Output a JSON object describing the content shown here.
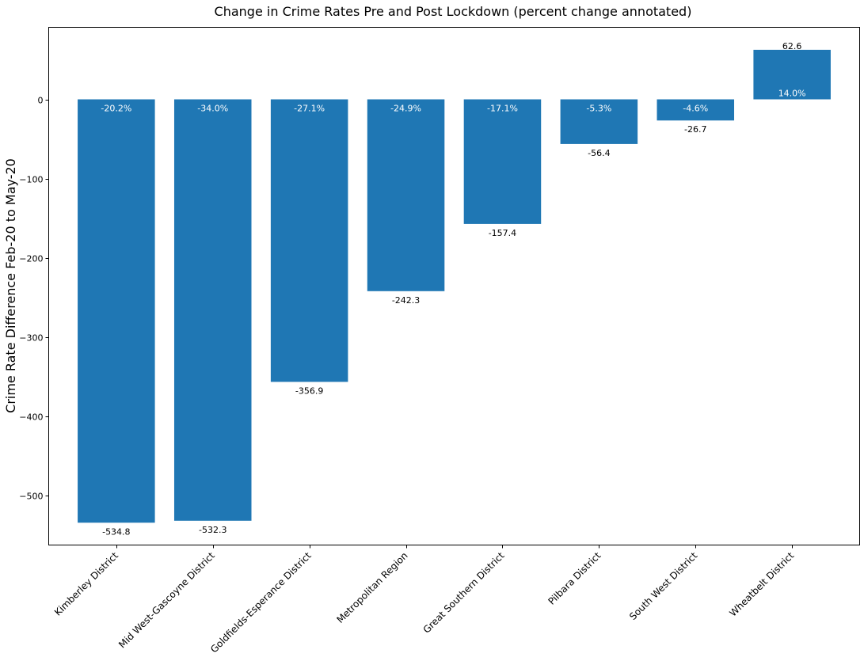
{
  "chart_data": {
    "type": "bar",
    "title": "Change in Crime Rates Pre and Post Lockdown (percent change annotated)",
    "xlabel": "",
    "ylabel": "Crime Rate Difference Feb-20 to May-20",
    "categories": [
      "Kimberley District",
      "Mid West-Gascoyne District",
      "Goldfields-Esperance District",
      "Metropolitan Region",
      "Great Southern District",
      "Pilbara District",
      "South West District",
      "Wheatbelt District"
    ],
    "values": [
      -534.8,
      -532.3,
      -356.9,
      -242.3,
      -157.4,
      -56.4,
      -26.7,
      62.6
    ],
    "value_labels": [
      "-534.8",
      "-532.3",
      "-356.9",
      "-242.3",
      "-157.4",
      "-56.4",
      "-26.7",
      "62.6"
    ],
    "percent_labels": [
      "-20.2%",
      "-34.0%",
      "-27.1%",
      "-24.9%",
      "-17.1%",
      "-5.3%",
      "-4.6%",
      "14.0%"
    ],
    "yticks": [
      0,
      -100,
      -200,
      -300,
      -400,
      -500
    ],
    "ytick_labels": [
      "0",
      "−100",
      "−200",
      "−300",
      "−400",
      "−500"
    ],
    "ylim": [
      -563,
      91
    ],
    "grid": false,
    "bar_color": "#1f77b4"
  }
}
